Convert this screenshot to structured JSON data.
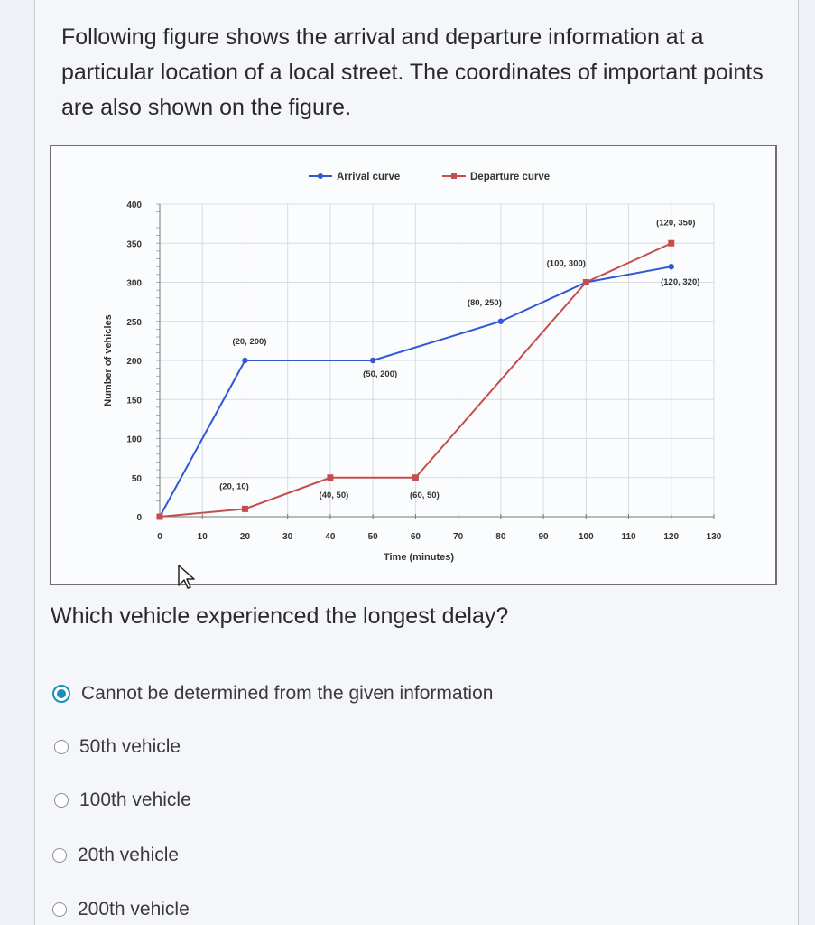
{
  "question": {
    "text": "Following figure shows the arrival and departure information at a particular location of a local street. The coordinates of important points are also shown on the figure.",
    "prompt": "Which vehicle experienced the longest delay?"
  },
  "options": [
    {
      "label": "Cannot be determined from the given information",
      "selected": true
    },
    {
      "label": "50th vehicle",
      "selected": false
    },
    {
      "label": "100th vehicle",
      "selected": false
    },
    {
      "label": "20th vehicle",
      "selected": false
    },
    {
      "label": "200th vehicle",
      "selected": false
    }
  ],
  "chart_data": {
    "type": "line",
    "title": "",
    "xlabel": "Time (minutes)",
    "ylabel": "Number of vehicles",
    "xlim": [
      0,
      130
    ],
    "ylim": [
      0,
      400
    ],
    "x_ticks": [
      "0",
      "10",
      "20",
      "30",
      "40",
      "50",
      "60",
      "70",
      "80",
      "90",
      "100",
      "110",
      "120",
      "130"
    ],
    "y_ticks": [
      "0",
      "50",
      "100",
      "150",
      "200",
      "250",
      "300",
      "350",
      "400"
    ],
    "grid": true,
    "legend_position": "top",
    "series": [
      {
        "name": "Arrival curve",
        "color": "#2f57d6",
        "points": [
          [
            0,
            0
          ],
          [
            20,
            200
          ],
          [
            50,
            200
          ],
          [
            80,
            250
          ],
          [
            100,
            300
          ],
          [
            120,
            320
          ]
        ]
      },
      {
        "name": "Departure curve",
        "color": "#c44d4d",
        "points": [
          [
            0,
            0
          ],
          [
            20,
            10
          ],
          [
            40,
            50
          ],
          [
            60,
            50
          ],
          [
            100,
            300
          ],
          [
            120,
            350
          ]
        ]
      }
    ],
    "annotations": [
      {
        "text": "(20, 200)",
        "x": 20,
        "y": 200
      },
      {
        "text": "(50, 200)",
        "x": 50,
        "y": 200
      },
      {
        "text": "(80, 250)",
        "x": 80,
        "y": 250
      },
      {
        "text": "(100, 300)",
        "x": 100,
        "y": 300
      },
      {
        "text": "(120, 350)",
        "x": 120,
        "y": 350
      },
      {
        "text": "(120, 320)",
        "x": 120,
        "y": 320
      },
      {
        "text": "(20, 10)",
        "x": 20,
        "y": 10
      },
      {
        "text": "(40, 50)",
        "x": 40,
        "y": 50
      },
      {
        "text": "(60, 50)",
        "x": 60,
        "y": 50
      }
    ]
  }
}
